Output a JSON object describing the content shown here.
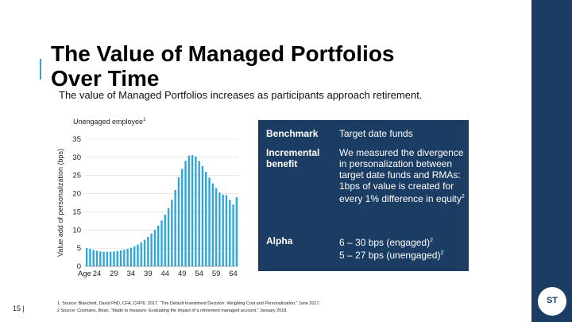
{
  "slide": {
    "title_line1": "The Value of Managed Portfolios",
    "title_line2": "Over Time",
    "subtitle": "The value of Managed Portfolios increases as participants approach retirement.",
    "page_number": "15 |",
    "logo_text": "ST",
    "accent_color": "#2ea6d8",
    "navy_color": "#1c3d63"
  },
  "chart_label": {
    "text": "Unengaged employee",
    "footnote_ref": "1"
  },
  "chart_data": {
    "type": "bar",
    "title": "",
    "xlabel": "Age",
    "ylabel": "Value add of personalization (bps)",
    "ylim": [
      0,
      35
    ],
    "yticks": [
      0,
      5,
      10,
      15,
      20,
      25,
      30,
      35
    ],
    "xticks": [
      24,
      29,
      34,
      39,
      44,
      49,
      54,
      59,
      64
    ],
    "grid": true,
    "color": "#2ea6d8",
    "categories": [
      21,
      22,
      23,
      24,
      25,
      26,
      27,
      28,
      29,
      30,
      31,
      32,
      33,
      34,
      35,
      36,
      37,
      38,
      39,
      40,
      41,
      42,
      43,
      44,
      45,
      46,
      47,
      48,
      49,
      50,
      51,
      52,
      53,
      54,
      55,
      56,
      57,
      58,
      59,
      60,
      61,
      62,
      63,
      64,
      65
    ],
    "values": [
      5,
      4.8,
      4.5,
      4.3,
      4.1,
      4,
      4,
      4,
      4.1,
      4.2,
      4.4,
      4.6,
      4.8,
      5.1,
      5.5,
      6,
      6.6,
      7.3,
      8.1,
      9,
      10,
      11.2,
      12.6,
      14.2,
      16,
      18.3,
      21,
      24.5,
      26.8,
      29,
      30.5,
      30.6,
      30.2,
      29,
      27.6,
      26,
      24.4,
      22.8,
      21.5,
      20.3,
      19.7,
      19.6,
      18.3,
      17,
      19
    ]
  },
  "info": {
    "benchmark_label": "Benchmark",
    "benchmark_value": "Target date funds",
    "incremental_label": "Incremental benefit",
    "incremental_value": "We measured the divergence in personalization between target date funds and RMAs: 1bps of value is created for every 1% difference in equity",
    "incremental_sup": "2",
    "alpha_label": "Alpha",
    "alpha_line1": "6 – 30 bps (engaged)",
    "alpha_line1_sup": "2",
    "alpha_line2": "5 – 27 bps (unengaged)",
    "alpha_line2_sup": "2"
  },
  "footnotes": {
    "line1": "1. Source: Blanchett, David PhD, CFA, CFP®. 2017. “The Default Investment Decision: Weighing Cost and Personalization.” June 2017.",
    "line2": "2 Source: Cosmano, Brian, “Made to measure: Evaluating the impact of a retirement managed account,” January 2018."
  }
}
